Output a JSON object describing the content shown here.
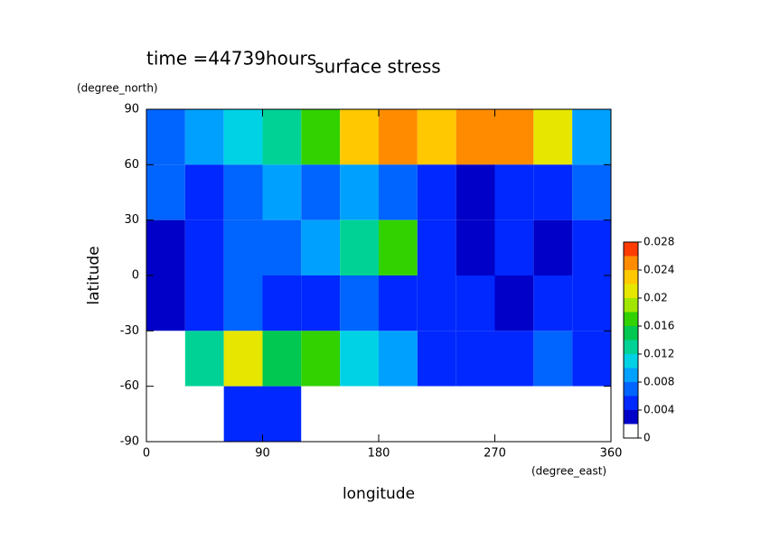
{
  "chart_data": {
    "type": "heatmap",
    "title": "surface stress",
    "subtitle": "time =44739hours",
    "x_label": "longitude",
    "x_unit": "(degree_east)",
    "y_label": "latitude",
    "y_unit": "(degree_north)",
    "xlim": [
      0,
      360
    ],
    "xticks": [
      0,
      90,
      180,
      270,
      360
    ],
    "ylim": [
      -90,
      90
    ],
    "yticks": [
      -90,
      -60,
      -30,
      0,
      30,
      60,
      90
    ],
    "x": [
      15,
      45,
      75,
      105,
      135,
      165,
      195,
      225,
      255,
      285,
      315,
      345
    ],
    "y": [
      75,
      45,
      15,
      -15,
      -45,
      -75
    ],
    "z": [
      [
        0.006,
        0.008,
        0.01,
        0.012,
        0.016,
        0.022,
        0.024,
        0.022,
        0.024,
        0.026,
        0.02,
        0.008
      ],
      [
        0.006,
        0.004,
        0.006,
        0.008,
        0.006,
        0.008,
        0.006,
        0.004,
        0.002,
        0.004,
        0.004,
        0.006
      ],
      [
        0.002,
        0.004,
        0.006,
        0.006,
        0.008,
        0.012,
        0.016,
        0.004,
        0.002,
        0.004,
        0.002,
        0.004
      ],
      [
        0.002,
        0.004,
        0.006,
        0.004,
        0.004,
        0.006,
        0.004,
        0.004,
        0.004,
        0.002,
        0.004,
        0.004
      ],
      [
        0,
        0.012,
        0.02,
        0.014,
        0.016,
        0.01,
        0.008,
        0.004,
        0.004,
        0.004,
        0.006,
        0.004
      ],
      [
        0,
        0,
        0.004,
        0.004,
        0,
        0,
        0,
        0,
        0,
        0,
        0,
        0
      ]
    ],
    "colorbar": {
      "lim": [
        0,
        0.028
      ],
      "ticks": [
        0,
        0.004,
        0.008,
        0.012,
        0.016,
        0.02,
        0.024,
        0.028
      ],
      "colors": [
        "#ffffff",
        "#0000c8",
        "#0028ff",
        "#0064ff",
        "#00a0ff",
        "#00d2e6",
        "#00d296",
        "#00c850",
        "#32d200",
        "#a0e600",
        "#e6e600",
        "#ffc800",
        "#ff8c00",
        "#ff3c00"
      ]
    }
  }
}
